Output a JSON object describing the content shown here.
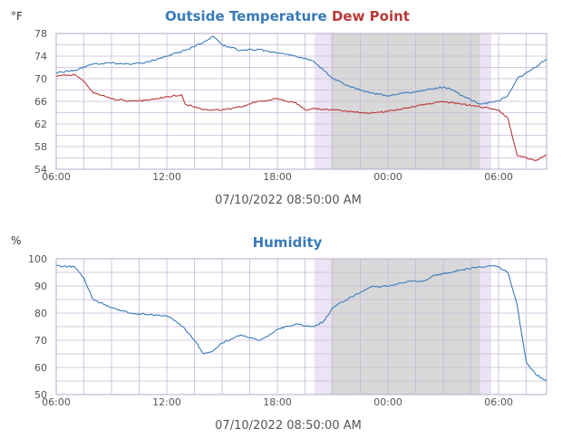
{
  "colors": {
    "outside_temperature": "#3a7ab8",
    "dew_point": "#b83a3a",
    "humidity": "#3a7ab8",
    "grid": "#c8b8d8",
    "night_shade": "#d8d8d8",
    "twilight": "#ebe4f4",
    "plot_bg": "#ffffff"
  },
  "chart_data": [
    {
      "type": "line",
      "title_parts": [
        "Outside Temperature",
        "Dew Point"
      ],
      "unit": "°F",
      "x_ticks": [
        "06:00",
        "12:00",
        "18:00",
        "00:00",
        "06:00"
      ],
      "x_tick_hours": [
        6,
        12,
        18,
        24,
        30
      ],
      "x_range_hours": [
        6,
        32.6
      ],
      "ylim": [
        54,
        78
      ],
      "y_ticks": [
        54,
        58,
        62,
        66,
        70,
        74,
        78
      ],
      "timestamp": "07/10/2022 08:50:00 AM",
      "grid": true,
      "shading": {
        "night": [
          20.9,
          29.0
        ],
        "twilight_start": [
          20.0,
          20.9
        ],
        "twilight_end": [
          29.0,
          29.6
        ]
      },
      "series": [
        {
          "name": "Outside Temperature",
          "color_key": "outside_temperature",
          "points": [
            [
              6,
              71
            ],
            [
              7,
              71.5
            ],
            [
              8,
              72.6
            ],
            [
              9,
              72.8
            ],
            [
              10,
              72.5
            ],
            [
              11,
              73
            ],
            [
              12,
              74
            ],
            [
              13,
              75
            ],
            [
              14,
              76.5
            ],
            [
              14.5,
              77.5
            ],
            [
              15,
              76
            ],
            [
              16,
              75
            ],
            [
              17,
              75.2
            ],
            [
              18,
              74.5
            ],
            [
              19,
              74
            ],
            [
              20,
              73
            ],
            [
              20.5,
              71.5
            ],
            [
              21,
              70
            ],
            [
              22,
              68.5
            ],
            [
              23,
              67.5
            ],
            [
              24,
              67
            ],
            [
              25,
              67.5
            ],
            [
              26,
              68
            ],
            [
              27,
              68.5
            ],
            [
              27.5,
              68
            ],
            [
              28,
              67
            ],
            [
              29,
              65.5
            ],
            [
              30,
              66
            ],
            [
              30.5,
              67
            ],
            [
              31,
              70
            ],
            [
              32,
              72
            ],
            [
              32.6,
              73.5
            ]
          ]
        },
        {
          "name": "Dew Point",
          "color_key": "dew_point",
          "points": [
            [
              6,
              70.5
            ],
            [
              7,
              70.7
            ],
            [
              7.5,
              69.5
            ],
            [
              8,
              67.5
            ],
            [
              9,
              66.5
            ],
            [
              10,
              66
            ],
            [
              11,
              66.2
            ],
            [
              12,
              66.8
            ],
            [
              12.8,
              67.2
            ],
            [
              13,
              65.5
            ],
            [
              14,
              64.5
            ],
            [
              15,
              64.5
            ],
            [
              16,
              65
            ],
            [
              17,
              66
            ],
            [
              18,
              66.5
            ],
            [
              18.5,
              66
            ],
            [
              19,
              65.8
            ],
            [
              19.5,
              64.5
            ],
            [
              20,
              64.7
            ],
            [
              21,
              64.5
            ],
            [
              22,
              64.2
            ],
            [
              23,
              63.9
            ],
            [
              24,
              64.2
            ],
            [
              25,
              64.8
            ],
            [
              26,
              65.5
            ],
            [
              27,
              66
            ],
            [
              28,
              65.5
            ],
            [
              29,
              65
            ],
            [
              30,
              64.5
            ],
            [
              30.5,
              63
            ],
            [
              31,
              56.5
            ],
            [
              32,
              55.5
            ],
            [
              32.6,
              56.5
            ]
          ]
        }
      ]
    },
    {
      "type": "line",
      "title_parts": [
        "Humidity"
      ],
      "unit": "%",
      "x_ticks": [
        "06:00",
        "12:00",
        "18:00",
        "00:00",
        "06:00"
      ],
      "x_tick_hours": [
        6,
        12,
        18,
        24,
        30
      ],
      "x_range_hours": [
        6,
        32.6
      ],
      "ylim": [
        50,
        100
      ],
      "y_ticks": [
        50,
        60,
        70,
        80,
        90,
        100
      ],
      "timestamp": "07/10/2022 08:50:00 AM",
      "grid": true,
      "shading": {
        "night": [
          20.9,
          29.0
        ],
        "twilight_start": [
          20.0,
          20.9
        ],
        "twilight_end": [
          29.0,
          29.6
        ]
      },
      "series": [
        {
          "name": "Humidity",
          "color_key": "humidity",
          "points": [
            [
              6,
              97.5
            ],
            [
              7,
              97
            ],
            [
              7.5,
              93
            ],
            [
              8,
              85
            ],
            [
              9,
              82
            ],
            [
              10,
              80
            ],
            [
              11,
              79.5
            ],
            [
              12,
              79
            ],
            [
              12.5,
              77
            ],
            [
              13,
              74
            ],
            [
              13.5,
              70
            ],
            [
              14,
              65
            ],
            [
              14.5,
              66
            ],
            [
              15,
              69
            ],
            [
              16,
              72
            ],
            [
              17,
              70
            ],
            [
              17.5,
              71.5
            ],
            [
              18,
              74
            ],
            [
              19,
              76
            ],
            [
              20,
              75
            ],
            [
              20.5,
              77
            ],
            [
              21,
              82
            ],
            [
              22,
              86
            ],
            [
              23,
              89.5
            ],
            [
              24,
              90
            ],
            [
              25,
              91.5
            ],
            [
              26,
              92
            ],
            [
              26.5,
              94
            ],
            [
              27,
              94.5
            ],
            [
              28,
              96
            ],
            [
              29,
              97
            ],
            [
              29.7,
              97.5
            ],
            [
              30,
              97
            ],
            [
              30.5,
              95
            ],
            [
              31,
              83
            ],
            [
              31.5,
              62
            ],
            [
              32,
              57.5
            ],
            [
              32.6,
              55
            ]
          ]
        }
      ]
    }
  ]
}
